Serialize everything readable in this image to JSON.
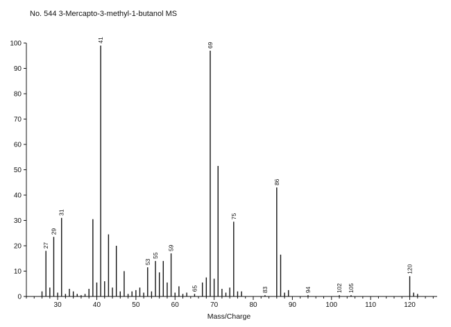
{
  "chart_data": {
    "type": "bar",
    "title": "No. 544 3-Mercapto-3-methyl-1-butanol MS",
    "xlabel": "Mass/Charge",
    "ylabel": "",
    "xlim": [
      22,
      127
    ],
    "ylim": [
      0,
      100
    ],
    "xticks": [
      30,
      40,
      50,
      60,
      70,
      80,
      90,
      100,
      110,
      120
    ],
    "yticks": [
      0,
      10,
      20,
      30,
      40,
      50,
      60,
      70,
      80,
      90,
      100
    ],
    "x": [
      26,
      27,
      28,
      29,
      30,
      31,
      32,
      33,
      34,
      35,
      36,
      37,
      38,
      39,
      40,
      41,
      42,
      43,
      44,
      45,
      46,
      47,
      48,
      49,
      50,
      51,
      52,
      53,
      54,
      55,
      56,
      57,
      58,
      59,
      60,
      61,
      62,
      63,
      65,
      67,
      68,
      69,
      70,
      71,
      72,
      73,
      74,
      75,
      76,
      77,
      83,
      86,
      87,
      88,
      89,
      94,
      102,
      105,
      120,
      121,
      122
    ],
    "values": [
      2,
      18,
      3.5,
      23.5,
      1.5,
      31,
      1,
      3,
      2,
      1,
      0.5,
      1,
      3,
      30.5,
      5.5,
      99,
      6,
      24.5,
      3.5,
      20,
      2,
      10,
      1,
      2,
      2.5,
      3.5,
      1.5,
      11.5,
      2,
      14,
      9.5,
      14,
      5.5,
      17,
      1.5,
      4,
      1,
      1.5,
      1,
      5.5,
      7.5,
      97,
      7,
      51.5,
      3,
      1.5,
      3.5,
      29.5,
      2,
      2,
      0.5,
      43,
      16.5,
      1.5,
      2.5,
      0.5,
      0.5,
      0.5,
      8,
      1.5,
      1
    ],
    "peak_labels": [
      {
        "x": 27,
        "y": 18,
        "text": "27"
      },
      {
        "x": 29,
        "y": 23.5,
        "text": "29"
      },
      {
        "x": 31,
        "y": 31,
        "text": "31"
      },
      {
        "x": 41,
        "y": 99,
        "text": "41"
      },
      {
        "x": 53,
        "y": 11.5,
        "text": "53"
      },
      {
        "x": 55,
        "y": 14,
        "text": "55"
      },
      {
        "x": 59,
        "y": 17,
        "text": "59"
      },
      {
        "x": 65,
        "y": 1,
        "text": "65"
      },
      {
        "x": 69,
        "y": 97,
        "text": "69"
      },
      {
        "x": 75,
        "y": 29.5,
        "text": "75"
      },
      {
        "x": 83,
        "y": 0.5,
        "text": "83"
      },
      {
        "x": 86,
        "y": 43,
        "text": "86"
      },
      {
        "x": 94,
        "y": 0.5,
        "text": "94"
      },
      {
        "x": 102,
        "y": 0.5,
        "text": "102"
      },
      {
        "x": 105,
        "y": 0.5,
        "text": "105"
      },
      {
        "x": 120,
        "y": 8,
        "text": "120"
      }
    ],
    "grid": false
  }
}
